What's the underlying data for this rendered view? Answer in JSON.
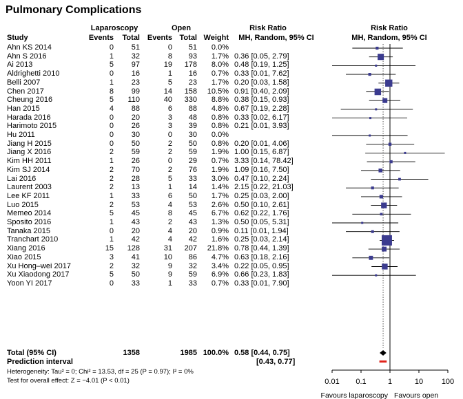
{
  "title": "Pulmonary Complications",
  "headers": {
    "lap_group": "Laparoscopy",
    "open_group": "Open",
    "rr_group": "Risk Ratio",
    "rr_sub": "MH, Random, 95% CI",
    "plot_group": "Risk Ratio",
    "plot_sub": "MH, Random, 95% CI",
    "study": "Study",
    "events1": "Events",
    "total1": "Total",
    "events2": "Events",
    "total2": "Total",
    "weight": "Weight"
  },
  "studies": [
    {
      "study": "Ahn KS 2014",
      "e1": "0",
      "t1": "51",
      "e2": "0",
      "t2": "51",
      "weight": "0.0%",
      "ci": ""
    },
    {
      "study": "Ahn S 2016",
      "e1": "1",
      "t1": "32",
      "e2": "8",
      "t2": "93",
      "weight": "1.7%",
      "ci": "0.36 [0.05, 2.79]"
    },
    {
      "study": "Ai 2013",
      "e1": "5",
      "t1": "97",
      "e2": "19",
      "t2": "178",
      "weight": "8.0%",
      "ci": "0.48 [0.19, 1.25]"
    },
    {
      "study": "Aldrighetti 2010",
      "e1": "0",
      "t1": "16",
      "e2": "1",
      "t2": "16",
      "weight": "0.7%",
      "ci": "0.33 [0.01, 7.62]"
    },
    {
      "study": "Belli 2007",
      "e1": "1",
      "t1": "23",
      "e2": "5",
      "t2": "23",
      "weight": "1.7%",
      "ci": "0.20 [0.03, 1.58]"
    },
    {
      "study": "Chen 2017",
      "e1": "8",
      "t1": "99",
      "e2": "14",
      "t2": "158",
      "weight": "10.5%",
      "ci": "0.91 [0.40, 2.09]"
    },
    {
      "study": "Cheung 2016",
      "e1": "5",
      "t1": "110",
      "e2": "40",
      "t2": "330",
      "weight": "8.8%",
      "ci": "0.38 [0.15, 0.93]"
    },
    {
      "study": "Han 2015",
      "e1": "4",
      "t1": "88",
      "e2": "6",
      "t2": "88",
      "weight": "4.8%",
      "ci": "0.67 [0.19, 2.28]"
    },
    {
      "study": "Harada 2016",
      "e1": "0",
      "t1": "20",
      "e2": "3",
      "t2": "48",
      "weight": "0.8%",
      "ci": "0.33 [0.02, 6.17]"
    },
    {
      "study": "Harimoto 2015",
      "e1": "0",
      "t1": "26",
      "e2": "3",
      "t2": "39",
      "weight": "0.8%",
      "ci": "0.21 [0.01, 3.93]"
    },
    {
      "study": "Hu 2011",
      "e1": "0",
      "t1": "30",
      "e2": "0",
      "t2": "30",
      "weight": "0.0%",
      "ci": ""
    },
    {
      "study": "Jiang H 2015",
      "e1": "0",
      "t1": "50",
      "e2": "2",
      "t2": "50",
      "weight": "0.8%",
      "ci": "0.20 [0.01, 4.06]"
    },
    {
      "study": "Jiang X 2016",
      "e1": "2",
      "t1": "59",
      "e2": "2",
      "t2": "59",
      "weight": "1.9%",
      "ci": "1.00 [0.15, 6.87]"
    },
    {
      "study": "Kim HH 2011",
      "e1": "1",
      "t1": "26",
      "e2": "0",
      "t2": "29",
      "weight": "0.7%",
      "ci": "3.33 [0.14, 78.42]"
    },
    {
      "study": "Kim SJ 2014",
      "e1": "2",
      "t1": "70",
      "e2": "2",
      "t2": "76",
      "weight": "1.9%",
      "ci": "1.09 [0.16, 7.50]"
    },
    {
      "study": "Lai 2016",
      "e1": "2",
      "t1": "28",
      "e2": "5",
      "t2": "33",
      "weight": "3.0%",
      "ci": "0.47 [0.10, 2.24]"
    },
    {
      "study": "Laurent 2003",
      "e1": "2",
      "t1": "13",
      "e2": "1",
      "t2": "14",
      "weight": "1.4%",
      "ci": "2.15 [0.22, 21.03]"
    },
    {
      "study": "Lee KF 2011",
      "e1": "1",
      "t1": "33",
      "e2": "6",
      "t2": "50",
      "weight": "1.7%",
      "ci": "0.25 [0.03, 2.00]"
    },
    {
      "study": "Luo 2015",
      "e1": "2",
      "t1": "53",
      "e2": "4",
      "t2": "53",
      "weight": "2.6%",
      "ci": "0.50 [0.10, 2.61]"
    },
    {
      "study": "Memeo 2014",
      "e1": "5",
      "t1": "45",
      "e2": "8",
      "t2": "45",
      "weight": "6.7%",
      "ci": "0.62 [0.22, 1.76]"
    },
    {
      "study": "Sposito 2016",
      "e1": "1",
      "t1": "43",
      "e2": "2",
      "t2": "43",
      "weight": "1.3%",
      "ci": "0.50 [0.05, 5.31]"
    },
    {
      "study": "Tanaka 2015",
      "e1": "0",
      "t1": "20",
      "e2": "4",
      "t2": "20",
      "weight": "0.9%",
      "ci": "0.11 [0.01, 1.94]"
    },
    {
      "study": "Tranchart 2010",
      "e1": "1",
      "t1": "42",
      "e2": "4",
      "t2": "42",
      "weight": "1.6%",
      "ci": "0.25 [0.03, 2.14]"
    },
    {
      "study": "Xiang 2016",
      "e1": "15",
      "t1": "128",
      "e2": "31",
      "t2": "207",
      "weight": "21.8%",
      "ci": "0.78 [0.44, 1.39]"
    },
    {
      "study": "Xiao 2015",
      "e1": "3",
      "t1": "41",
      "e2": "10",
      "t2": "86",
      "weight": "4.7%",
      "ci": "0.63 [0.18, 2.16]"
    },
    {
      "study": "Xu Hong–wei 2017",
      "e1": "2",
      "t1": "32",
      "e2": "9",
      "t2": "32",
      "weight": "3.4%",
      "ci": "0.22 [0.05, 0.95]"
    },
    {
      "study": "Xu Xiaodong 2017",
      "e1": "5",
      "t1": "50",
      "e2": "9",
      "t2": "59",
      "weight": "6.9%",
      "ci": "0.66 [0.23, 1.83]"
    },
    {
      "study": "Yoon YI 2017",
      "e1": "0",
      "t1": "33",
      "e2": "1",
      "t2": "33",
      "weight": "0.7%",
      "ci": "0.33 [0.01, 7.90]"
    }
  ],
  "total": {
    "label": "Total (95% CI)",
    "t1": "1358",
    "t2": "1985",
    "weight": "100.0%",
    "ci": "0.58 [0.44, 0.75]"
  },
  "prediction": {
    "label": "Prediction interval",
    "ci": "[0.43, 0.77]"
  },
  "heterogeneity": "Heterogeneity: Tau² = 0; Chi² = 13.53, df = 25 (P = 0.97); I² = 0%",
  "overall_effect": "Test for overall effect: Z = −4.01 (P < 0.01)",
  "axis": {
    "ticks": [
      "0.01",
      "0.1",
      "1",
      "10",
      "100"
    ],
    "favours_left": "Favours laparoscopy",
    "favours_right": "Favours open"
  },
  "colors": {
    "square": "#3b3b8f",
    "prediction": "#e0241b",
    "diamond": "#000000"
  },
  "chart_data": {
    "type": "forest",
    "scale": "log",
    "xlim": [
      0.01,
      100
    ],
    "reference_line": 1,
    "pooled_line": 0.58,
    "points": [
      {
        "rr": 0.36,
        "lo": 0.05,
        "hi": 2.79,
        "w": 1.7
      },
      {
        "rr": 0.48,
        "lo": 0.19,
        "hi": 1.25,
        "w": 8.0
      },
      {
        "rr": 0.33,
        "lo": 0.01,
        "hi": 7.62,
        "w": 0.7
      },
      {
        "rr": 0.2,
        "lo": 0.03,
        "hi": 1.58,
        "w": 1.7
      },
      {
        "rr": 0.91,
        "lo": 0.4,
        "hi": 2.09,
        "w": 10.5
      },
      {
        "rr": 0.38,
        "lo": 0.15,
        "hi": 0.93,
        "w": 8.8
      },
      {
        "rr": 0.67,
        "lo": 0.19,
        "hi": 2.28,
        "w": 4.8
      },
      {
        "rr": 0.33,
        "lo": 0.02,
        "hi": 6.17,
        "w": 0.8
      },
      {
        "rr": 0.21,
        "lo": 0.01,
        "hi": 3.93,
        "w": 0.8
      },
      null,
      {
        "rr": 0.2,
        "lo": 0.01,
        "hi": 4.06,
        "w": 0.8
      },
      {
        "rr": 1.0,
        "lo": 0.15,
        "hi": 6.87,
        "w": 1.9
      },
      {
        "rr": 3.33,
        "lo": 0.14,
        "hi": 78.42,
        "w": 0.7
      },
      {
        "rr": 1.09,
        "lo": 0.16,
        "hi": 7.5,
        "w": 1.9
      },
      {
        "rr": 0.47,
        "lo": 0.1,
        "hi": 2.24,
        "w": 3.0
      },
      {
        "rr": 2.15,
        "lo": 0.22,
        "hi": 21.03,
        "w": 1.4
      },
      {
        "rr": 0.25,
        "lo": 0.03,
        "hi": 2.0,
        "w": 1.7
      },
      {
        "rr": 0.5,
        "lo": 0.1,
        "hi": 2.61,
        "w": 2.6
      },
      {
        "rr": 0.62,
        "lo": 0.22,
        "hi": 1.76,
        "w": 6.7
      },
      {
        "rr": 0.5,
        "lo": 0.05,
        "hi": 5.31,
        "w": 1.3
      },
      {
        "rr": 0.11,
        "lo": 0.01,
        "hi": 1.94,
        "w": 0.9
      },
      {
        "rr": 0.25,
        "lo": 0.03,
        "hi": 2.14,
        "w": 1.6
      },
      {
        "rr": 0.78,
        "lo": 0.44,
        "hi": 1.39,
        "w": 21.8
      },
      {
        "rr": 0.63,
        "lo": 0.18,
        "hi": 2.16,
        "w": 4.7
      },
      {
        "rr": 0.22,
        "lo": 0.05,
        "hi": 0.95,
        "w": 3.4
      },
      {
        "rr": 0.66,
        "lo": 0.23,
        "hi": 1.83,
        "w": 6.9
      },
      {
        "rr": 0.33,
        "lo": 0.01,
        "hi": 7.9,
        "w": 0.7
      }
    ],
    "pooled": {
      "rr": 0.58,
      "lo": 0.44,
      "hi": 0.75
    },
    "prediction_interval": {
      "lo": 0.43,
      "hi": 0.77
    }
  }
}
